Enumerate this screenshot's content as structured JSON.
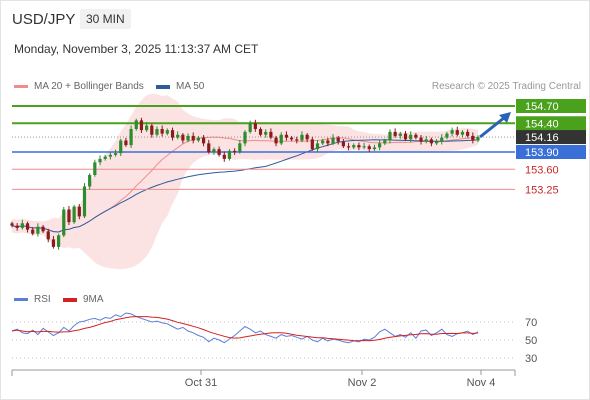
{
  "header": {
    "symbol": "USD/JPY",
    "interval": "30 MIN",
    "datetime": "Monday, November 3, 2025 11:13:37 AM CET"
  },
  "legend": {
    "ma20": {
      "label": "MA 20 + Bollinger Bands",
      "color": "#f08c8c"
    },
    "ma50": {
      "label": "MA 50",
      "color": "#2e5aa0"
    },
    "credit": "Research © 2025 Trading Central"
  },
  "rsi_legend": {
    "rsi": {
      "label": "RSI",
      "color": "#5b7fd9"
    },
    "ma9": {
      "label": "9MA",
      "color": "#d42121"
    }
  },
  "colors": {
    "up": "#2e8b2e",
    "down": "#8b1a1a",
    "resistance": "#4aa21c",
    "support": "#3a6fd8",
    "target": "#2a62b8",
    "pivot": "#333333"
  },
  "chart_data": {
    "type": "candlestick",
    "current_price": 154.16,
    "x_ticks": [
      "Oct 31",
      "Nov 2",
      "Nov 4"
    ],
    "levels": [
      {
        "value": 154.7,
        "label": "154.70",
        "kind": "resistance"
      },
      {
        "value": 154.4,
        "label": "154.40",
        "kind": "resistance"
      },
      {
        "value": 154.16,
        "label": "154.16",
        "kind": "last"
      },
      {
        "value": 153.9,
        "label": "153.90",
        "kind": "support"
      },
      {
        "value": 153.6,
        "label": "153.60",
        "kind": "minor"
      },
      {
        "value": 153.25,
        "label": "153.25",
        "kind": "minor"
      }
    ],
    "closes": [
      152.62,
      152.58,
      152.66,
      152.55,
      152.48,
      152.6,
      152.52,
      152.38,
      152.25,
      152.45,
      152.9,
      152.68,
      152.95,
      152.78,
      153.3,
      153.5,
      153.72,
      153.78,
      153.82,
      153.85,
      153.88,
      154.1,
      154.02,
      154.3,
      154.45,
      154.28,
      154.36,
      154.2,
      154.3,
      154.22,
      154.28,
      154.15,
      154.2,
      154.1,
      154.18,
      154.1,
      154.15,
      154.05,
      153.9,
      153.95,
      153.85,
      153.78,
      153.92,
      153.9,
      154.05,
      154.25,
      154.4,
      154.3,
      154.2,
      154.25,
      154.15,
      154.05,
      154.2,
      154.15,
      154.12,
      154.1,
      154.2,
      154.12,
      153.95,
      154.05,
      154.1,
      154.05,
      154.15,
      154.08,
      154.0,
      153.98,
      154.02,
      153.98,
      154.0,
      153.95,
      153.98,
      154.05,
      154.1,
      154.25,
      154.18,
      154.22,
      154.12,
      154.2,
      154.15,
      154.08,
      154.12,
      154.05,
      154.08,
      154.15,
      154.22,
      154.28,
      154.2,
      154.25,
      154.18,
      154.1,
      154.16
    ],
    "rsi": {
      "levels": [
        70,
        50,
        30
      ],
      "values": [
        60,
        62,
        58,
        57,
        61,
        56,
        63,
        59,
        55,
        58,
        64,
        60,
        66,
        70,
        71,
        73,
        74,
        72,
        75,
        74,
        78,
        76,
        80,
        79,
        76,
        74,
        72,
        70,
        71,
        69,
        68,
        65,
        62,
        64,
        60,
        58,
        55,
        53,
        48,
        52,
        50,
        47,
        51,
        55,
        60,
        65,
        62,
        58,
        60,
        56,
        54,
        52,
        56,
        54,
        55,
        53,
        51,
        54,
        50,
        48,
        52,
        49,
        51,
        50,
        48,
        47,
        49,
        48,
        51,
        50,
        53,
        59,
        62,
        58,
        54,
        56,
        53,
        58,
        52,
        60,
        61,
        55,
        58,
        62,
        56,
        54,
        57,
        58,
        60,
        56,
        59
      ]
    }
  }
}
